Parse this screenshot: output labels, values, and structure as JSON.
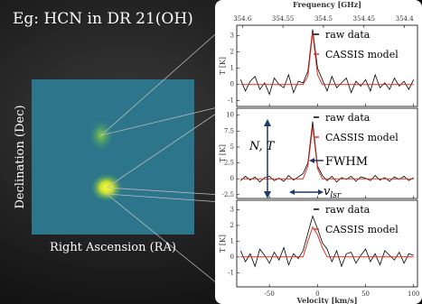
{
  "title": "Eg: HCN in DR 21(OH)",
  "image": {
    "y_label": "Declination (Dec)",
    "x_label": "Right Ascension (RA)"
  },
  "chart_data": [
    {
      "type": "line",
      "ylabel": "T [K]",
      "legend": "upper right",
      "x2label": "Frequency [GHz]",
      "x2lim": [
        354.607,
        354.384
      ],
      "x2ticks": [
        354.6,
        354.55,
        354.5,
        354.45,
        354.4
      ],
      "xlim": [
        -84,
        104
      ],
      "ylim": [
        -1.35,
        3.65
      ],
      "yticks": [
        3,
        2,
        1,
        0,
        -1
      ],
      "x": [
        -80,
        -75,
        -70,
        -65,
        -60,
        -55,
        -50,
        -45,
        -40,
        -35,
        -30,
        -25,
        -20,
        -15,
        -10,
        -5,
        0,
        5,
        10,
        15,
        20,
        25,
        30,
        35,
        40,
        45,
        50,
        55,
        60,
        65,
        70,
        75,
        80,
        85,
        90,
        95,
        100
      ],
      "series": [
        {
          "name": "raw data",
          "color": "#000000",
          "values": [
            0.3,
            -0.4,
            0.2,
            0.5,
            -0.3,
            0.1,
            -0.6,
            0.4,
            0.0,
            -0.2,
            0.6,
            -0.5,
            0.2,
            0.1,
            0.8,
            3.4,
            1.0,
            0.3,
            -0.4,
            0.5,
            -0.2,
            0.1,
            0.4,
            -0.5,
            0.2,
            -0.1,
            0.3,
            -0.4,
            0.6,
            -0.2,
            0.1,
            -0.3,
            0.4,
            -0.1,
            0.2,
            -0.3,
            0.3
          ]
        },
        {
          "name": "CASSIS model",
          "color": "#e03020",
          "values": [
            0,
            0,
            0,
            0,
            0,
            0,
            0,
            0,
            0,
            0,
            0,
            0,
            0,
            0,
            0.5,
            3.2,
            0.6,
            0,
            0,
            0,
            0,
            0,
            0,
            0,
            0,
            0,
            0,
            0,
            0,
            0,
            0,
            0,
            0,
            0,
            0,
            0,
            0
          ]
        }
      ]
    },
    {
      "type": "line",
      "ylabel": "T [K]",
      "legend": "upper right",
      "xlim": [
        -84,
        104
      ],
      "ylim": [
        -3.1,
        11.1
      ],
      "yticks": [
        10,
        7.5,
        5,
        2.5,
        0,
        -2.5
      ],
      "annotations": {
        "column": "N, T",
        "width": "FWHM",
        "velocity": "v",
        "velocity_sub": "lsr"
      },
      "x": [
        -80,
        -75,
        -70,
        -65,
        -60,
        -55,
        -50,
        -45,
        -40,
        -35,
        -30,
        -25,
        -20,
        -15,
        -10,
        -5,
        0,
        5,
        10,
        15,
        20,
        25,
        30,
        35,
        40,
        45,
        50,
        55,
        60,
        65,
        70,
        75,
        80,
        85,
        90,
        95,
        100
      ],
      "series": [
        {
          "name": "raw data",
          "color": "#000000",
          "values": [
            -0.3,
            0.4,
            -0.2,
            0.3,
            -0.5,
            0.2,
            0.4,
            -0.3,
            0.1,
            -0.4,
            0.5,
            -0.2,
            0.3,
            0.8,
            2.5,
            9.0,
            2.0,
            0.5,
            -0.3,
            0.4,
            -0.5,
            0.2,
            -0.1,
            0.4,
            -0.4,
            0.3,
            0.1,
            -0.3,
            0.5,
            -0.2,
            0.2,
            -0.4,
            0.3,
            -0.1,
            0.4,
            -0.3,
            0.2
          ]
        },
        {
          "name": "CASSIS model",
          "color": "#e03020",
          "values": [
            0,
            0,
            0,
            0,
            0,
            0,
            0,
            0,
            0,
            0,
            0,
            0,
            0,
            0,
            2.0,
            8.2,
            1.6,
            0,
            0,
            0,
            0,
            0,
            0,
            0,
            0,
            0,
            0,
            0,
            0,
            0,
            0,
            0,
            0,
            0,
            0,
            0,
            0
          ]
        }
      ]
    },
    {
      "type": "line",
      "ylabel": "T [K]",
      "legend": "upper right",
      "xlabel": "Velocity [km/s]",
      "xlim": [
        -84,
        104
      ],
      "xticks": [
        -50,
        0,
        50,
        100
      ],
      "ylim": [
        -1.9,
        3.6
      ],
      "yticks": [
        3,
        2,
        1,
        0,
        -1
      ],
      "x": [
        -80,
        -75,
        -70,
        -65,
        -60,
        -55,
        -50,
        -45,
        -40,
        -35,
        -30,
        -25,
        -20,
        -15,
        -10,
        -5,
        0,
        5,
        10,
        15,
        20,
        25,
        30,
        35,
        40,
        45,
        50,
        55,
        60,
        65,
        70,
        75,
        80,
        85,
        90,
        95,
        100
      ],
      "series": [
        {
          "name": "raw data",
          "color": "#000000",
          "values": [
            0.4,
            -0.3,
            0.2,
            -0.6,
            0.5,
            0.1,
            -0.4,
            0.3,
            -0.2,
            0.6,
            -0.5,
            0.2,
            -0.1,
            0.4,
            1.5,
            2.6,
            1.8,
            0.9,
            0.5,
            -0.3,
            0.4,
            -0.6,
            0.2,
            0.3,
            -0.4,
            0.1,
            0.5,
            -0.3,
            0.2,
            -0.5,
            0.4,
            0.1,
            -0.2,
            0.3,
            -0.4,
            0.2,
            0.1
          ]
        },
        {
          "name": "CASSIS model",
          "color": "#e03020",
          "values": [
            0,
            0,
            0,
            0,
            0,
            0,
            0,
            0,
            0,
            0,
            0,
            0,
            0,
            0,
            1.0,
            1.9,
            1.4,
            0.6,
            0,
            0,
            0,
            0,
            0,
            0,
            0,
            0,
            0,
            0,
            0,
            0,
            0,
            0,
            0,
            0,
            0,
            0,
            0
          ]
        }
      ]
    }
  ]
}
